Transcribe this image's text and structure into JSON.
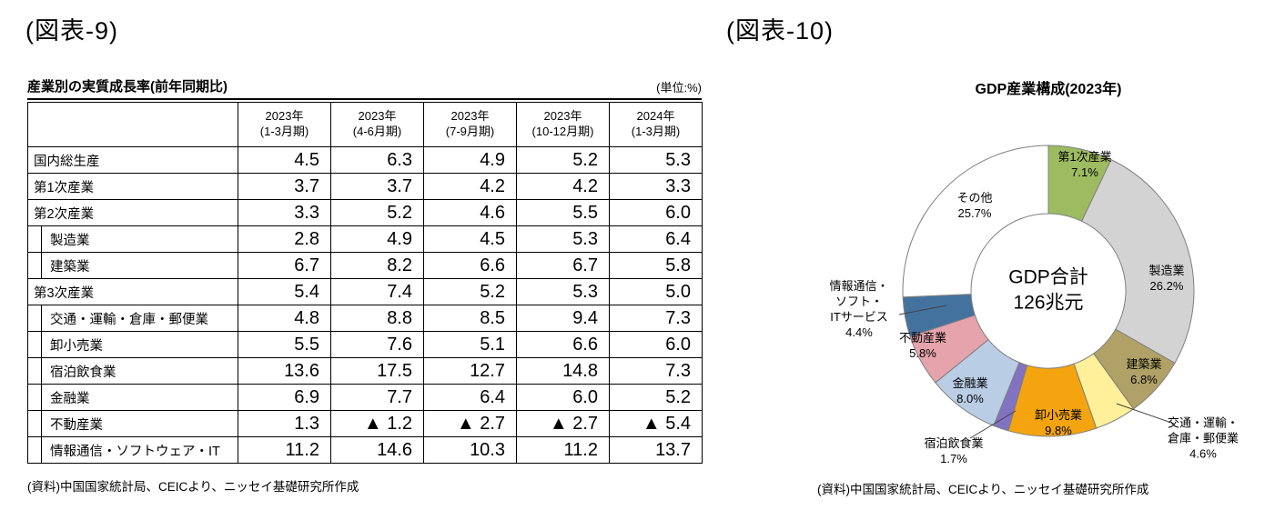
{
  "figure9": {
    "heading": "(図表-9)",
    "title": "産業別の実質成長率(前年同期比)",
    "unit_note": "(単位:%)",
    "source": "(資料)中国国家統計局、CEICより、ニッセイ基礎研究所作成"
  },
  "figure10": {
    "heading": "(図表-10)",
    "title": "GDP産業構成(2023年)",
    "center_line1": "GDP合計",
    "center_line2": "126兆元",
    "source": "(資料)中国国家統計局、CEICより、ニッセイ基礎研究所作成"
  },
  "chart_data": [
    {
      "type": "table",
      "title": "産業別の実質成長率(前年同期比)",
      "unit": "%",
      "columns": [
        [
          "2023年",
          "(1-3月期)"
        ],
        [
          "2023年",
          "(4-6月期)"
        ],
        [
          "2023年",
          "(7-9月期)"
        ],
        [
          "2023年",
          "(10-12月期)"
        ],
        [
          "2024年",
          "(1-3月期)"
        ]
      ],
      "rows": [
        {
          "label": "国内総生産",
          "indent": 0,
          "values": [
            "4.5",
            "6.3",
            "4.9",
            "5.2",
            "5.3"
          ]
        },
        {
          "label": "第1次産業",
          "indent": 0,
          "values": [
            "3.7",
            "3.7",
            "4.2",
            "4.2",
            "3.3"
          ]
        },
        {
          "label": "第2次産業",
          "indent": 0,
          "values": [
            "3.3",
            "5.2",
            "4.6",
            "5.5",
            "6.0"
          ]
        },
        {
          "label": "製造業",
          "indent": 1,
          "values": [
            "2.8",
            "4.9",
            "4.5",
            "5.3",
            "6.4"
          ]
        },
        {
          "label": "建築業",
          "indent": 1,
          "values": [
            "6.7",
            "8.2",
            "6.6",
            "6.7",
            "5.8"
          ]
        },
        {
          "label": "第3次産業",
          "indent": 0,
          "values": [
            "5.4",
            "7.4",
            "5.2",
            "5.3",
            "5.0"
          ]
        },
        {
          "label": "交通・運輸・倉庫・郵便業",
          "indent": 1,
          "values": [
            "4.8",
            "8.8",
            "8.5",
            "9.4",
            "7.3"
          ]
        },
        {
          "label": "卸小売業",
          "indent": 1,
          "values": [
            "5.5",
            "7.6",
            "5.1",
            "6.6",
            "6.0"
          ]
        },
        {
          "label": "宿泊飲食業",
          "indent": 1,
          "values": [
            "13.6",
            "17.5",
            "12.7",
            "14.8",
            "7.3"
          ]
        },
        {
          "label": "金融業",
          "indent": 1,
          "values": [
            "6.9",
            "7.7",
            "6.4",
            "6.0",
            "5.2"
          ]
        },
        {
          "label": "不動産業",
          "indent": 1,
          "values": [
            "1.3",
            "▲ 1.2",
            "▲ 2.7",
            "▲ 2.7",
            "▲ 5.4"
          ]
        },
        {
          "label": "情報通信・ソフトウェア・IT",
          "indent": 1,
          "values": [
            "11.2",
            "14.6",
            "10.3",
            "11.2",
            "13.7"
          ]
        }
      ]
    },
    {
      "type": "pie",
      "donut": true,
      "title": "GDP産業構成(2023年)",
      "center_text": [
        "GDP合計",
        "126兆元"
      ],
      "legend_position": "none",
      "slices": [
        {
          "name": "第1次産業",
          "label_lines": [
            "第1次産業"
          ],
          "value": 7.1,
          "percent_label": "7.1%",
          "color": "#9dbb61"
        },
        {
          "name": "製造業",
          "label_lines": [
            "製造業"
          ],
          "value": 26.2,
          "percent_label": "26.2%",
          "color": "#d3d3d3"
        },
        {
          "name": "建築業",
          "label_lines": [
            "建築業"
          ],
          "value": 6.8,
          "percent_label": "6.8%",
          "color": "#b0a266"
        },
        {
          "name": "交通・運輸・倉庫・郵便業",
          "label_lines": [
            "交通・運輸・",
            "倉庫・郵便業"
          ],
          "value": 4.6,
          "percent_label": "4.6%",
          "color": "#fff099"
        },
        {
          "name": "卸小売業",
          "label_lines": [
            "卸小売業"
          ],
          "value": 9.8,
          "percent_label": "9.8%",
          "color": "#f3a40e"
        },
        {
          "name": "宿泊飲食業",
          "label_lines": [
            "宿泊飲食業"
          ],
          "value": 1.7,
          "percent_label": "1.7%",
          "color": "#8173c1"
        },
        {
          "name": "金融業",
          "label_lines": [
            "金融業"
          ],
          "value": 8.0,
          "percent_label": "8.0%",
          "color": "#b9cde5"
        },
        {
          "name": "不動産業",
          "label_lines": [
            "不動産業"
          ],
          "value": 5.8,
          "percent_label": "5.8%",
          "color": "#e5a3ab"
        },
        {
          "name": "情報通信・ソフト・ITサービス",
          "label_lines": [
            "情報通信・",
            "ソフト・",
            "ITサービス"
          ],
          "value": 4.4,
          "percent_label": "4.4%",
          "color": "#44729e"
        },
        {
          "name": "その他",
          "label_lines": [
            "その他"
          ],
          "value": 25.7,
          "percent_label": "25.7%",
          "color": "#ffffff"
        }
      ]
    }
  ]
}
